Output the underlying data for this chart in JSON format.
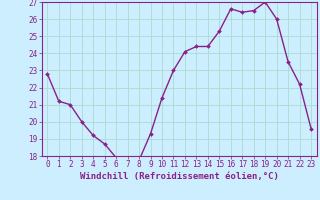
{
  "x": [
    0,
    1,
    2,
    3,
    4,
    5,
    6,
    7,
    8,
    9,
    10,
    11,
    12,
    13,
    14,
    15,
    16,
    17,
    18,
    19,
    20,
    21,
    22,
    23
  ],
  "y": [
    22.8,
    21.2,
    21.0,
    20.0,
    19.2,
    18.7,
    17.9,
    17.7,
    17.75,
    19.3,
    21.4,
    23.0,
    24.1,
    24.4,
    24.4,
    25.3,
    26.6,
    26.4,
    26.5,
    27.0,
    26.0,
    23.5,
    22.2,
    19.6
  ],
  "line_color": "#882288",
  "marker": "D",
  "marker_size": 2.0,
  "bg_color": "#cceeff",
  "grid_color": "#aaddcc",
  "xlabel": "Windchill (Refroidissement éolien,°C)",
  "ylim": [
    18,
    27
  ],
  "xlim": [
    -0.5,
    23.5
  ],
  "yticks": [
    18,
    19,
    20,
    21,
    22,
    23,
    24,
    25,
    26,
    27
  ],
  "xticks": [
    0,
    1,
    2,
    3,
    4,
    5,
    6,
    7,
    8,
    9,
    10,
    11,
    12,
    13,
    14,
    15,
    16,
    17,
    18,
    19,
    20,
    21,
    22,
    23
  ],
  "tick_fontsize": 5.5,
  "xlabel_fontsize": 6.5,
  "label_color": "#882288",
  "spine_color": "#882288",
  "linewidth": 1.0
}
